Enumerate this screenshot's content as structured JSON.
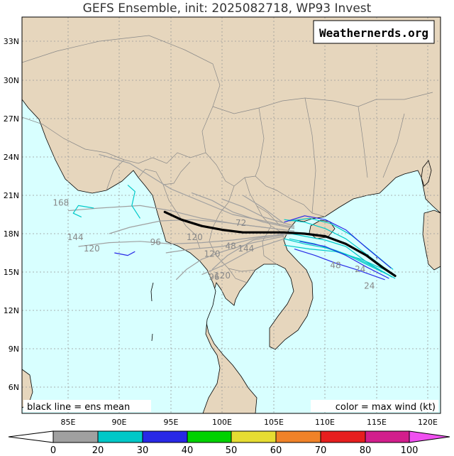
{
  "title": "GEFS Ensemble, init: 2025082718, WP93 Invest",
  "watermark": "Weathernerds.org",
  "lat_labels": [
    "33N",
    "30N",
    "27N",
    "24N",
    "21N",
    "18N",
    "15N",
    "12N",
    "9N",
    "6N"
  ],
  "lon_labels": [
    "85E",
    "90E",
    "95E",
    "100E",
    "105E",
    "110E",
    "115E",
    "120E"
  ],
  "legend_left": "black line = ens mean",
  "legend_right": "color = max wind (kt)",
  "colorbar": {
    "ticks": [
      "0",
      "20",
      "30",
      "40",
      "50",
      "60",
      "70",
      "80",
      "100"
    ],
    "colors": [
      "#a0a0a0",
      "#00c8c8",
      "#2828e6",
      "#00d200",
      "#e6dc32",
      "#f08228",
      "#e61e1e",
      "#d21e8c"
    ],
    "end_colors": {
      "left": "#ffffff",
      "right": "#f050f0"
    }
  },
  "map": {
    "ocean_color": "#d8ffff",
    "land_color": "#e6d6bd",
    "border_color": "#888888",
    "coast_color": "#000000"
  },
  "hour_labels": [
    {
      "text": "168",
      "lon": 84.3,
      "lat": 20.2
    },
    {
      "text": "144",
      "lon": 85.7,
      "lat": 17.5
    },
    {
      "text": "120",
      "lon": 87.3,
      "lat": 16.6
    },
    {
      "text": "96",
      "lon": 93.5,
      "lat": 17.1
    },
    {
      "text": "120",
      "lon": 97.3,
      "lat": 17.5
    },
    {
      "text": "120",
      "lon": 99.0,
      "lat": 16.2
    },
    {
      "text": "96",
      "lon": 99.2,
      "lat": 14.4
    },
    {
      "text": "120",
      "lon": 100.0,
      "lat": 14.5
    },
    {
      "text": "72",
      "lon": 101.8,
      "lat": 18.6
    },
    {
      "text": "48",
      "lon": 100.8,
      "lat": 16.8
    },
    {
      "text": "144",
      "lon": 102.3,
      "lat": 16.6
    },
    {
      "text": "24",
      "lon": 113.4,
      "lat": 15.0
    },
    {
      "text": "48",
      "lon": 111.0,
      "lat": 15.3
    },
    {
      "text": "24",
      "lon": 114.3,
      "lat": 13.7
    }
  ],
  "mean_track": [
    [
      116.8,
      14.7
    ],
    [
      115.5,
      15.4
    ],
    [
      114,
      16.3
    ],
    [
      112,
      17.2
    ],
    [
      110,
      17.8
    ],
    [
      108,
      18.0
    ],
    [
      106,
      18.1
    ],
    [
      104,
      18.1
    ],
    [
      102,
      18.1
    ],
    [
      100,
      18.3
    ],
    [
      98,
      18.6
    ],
    [
      96,
      19.1
    ],
    [
      94.4,
      19.7
    ]
  ],
  "members": [
    {
      "c": "#a0a0a0",
      "p": [
        [
          107,
          18.2
        ],
        [
          104,
          18.5
        ],
        [
          101,
          18.8
        ],
        [
          98,
          19.2
        ],
        [
          95,
          19.8
        ],
        [
          92,
          20.2
        ],
        [
          88,
          20.0
        ],
        [
          85,
          19.8
        ]
      ]
    },
    {
      "c": "#a0a0a0",
      "p": [
        [
          107,
          18.0
        ],
        [
          104,
          17.8
        ],
        [
          101,
          17.5
        ],
        [
          98,
          17.3
        ],
        [
          95,
          17.2
        ],
        [
          92,
          17.4
        ],
        [
          89,
          17.3
        ],
        [
          86,
          17.0
        ]
      ]
    },
    {
      "c": "#a0a0a0",
      "p": [
        [
          107,
          18.5
        ],
        [
          104,
          19.0
        ],
        [
          101,
          19.5
        ],
        [
          98,
          20.5
        ],
        [
          95,
          21.5
        ],
        [
          93,
          22.5
        ],
        [
          91,
          23.5
        ],
        [
          88,
          24.2
        ]
      ]
    },
    {
      "c": "#a0a0a0",
      "p": [
        [
          107,
          18.4
        ],
        [
          104,
          18.9
        ],
        [
          101,
          19.7
        ],
        [
          99,
          20.6
        ],
        [
          97,
          21.2
        ]
      ]
    },
    {
      "c": "#a0a0a0",
      "p": [
        [
          106,
          17.8
        ],
        [
          103,
          17.3
        ],
        [
          100,
          16.6
        ],
        [
          98,
          16.0
        ],
        [
          96.5,
          15.2
        ],
        [
          95.5,
          14.4
        ]
      ]
    },
    {
      "c": "#a0a0a0",
      "p": [
        [
          106,
          17.6
        ],
        [
          103,
          16.8
        ],
        [
          100,
          15.5
        ],
        [
          98,
          14.8
        ]
      ]
    },
    {
      "c": "#a0a0a0",
      "p": [
        [
          107,
          18.6
        ],
        [
          104,
          19.3
        ],
        [
          102,
          20.1
        ],
        [
          100,
          20.7
        ]
      ]
    },
    {
      "c": "#a0a0a0",
      "p": [
        [
          106,
          18.3
        ],
        [
          103,
          18.6
        ],
        [
          100,
          18.9
        ],
        [
          97,
          19.1
        ],
        [
          94,
          19.0
        ],
        [
          91,
          18.5
        ],
        [
          89,
          18.0
        ]
      ]
    },
    {
      "c": "#a0a0a0",
      "p": [
        [
          106,
          18.0
        ],
        [
          103,
          17.6
        ],
        [
          100,
          17.0
        ],
        [
          97,
          16.8
        ],
        [
          94.5,
          16.5
        ]
      ]
    },
    {
      "c": "#a0a0a0",
      "p": [
        [
          106,
          18.8
        ],
        [
          104,
          20.0
        ],
        [
          102,
          21.0
        ]
      ]
    },
    {
      "c": "#a0a0a0",
      "p": [
        [
          106,
          17.9
        ],
        [
          103,
          17.5
        ],
        [
          100.5,
          16.3
        ],
        [
          99,
          15.2
        ]
      ]
    },
    {
      "c": "#00c8c8",
      "p": [
        [
          116.5,
          14.6
        ],
        [
          114,
          15.8
        ],
        [
          112,
          17.0
        ],
        [
          110,
          17.5
        ],
        [
          108,
          17.8
        ],
        [
          106,
          18.1
        ]
      ]
    },
    {
      "c": "#00c8c8",
      "p": [
        [
          116.3,
          15.0
        ],
        [
          114,
          16.4
        ],
        [
          112,
          17.6
        ],
        [
          110,
          18.4
        ],
        [
          108,
          18.9
        ],
        [
          106,
          19.1
        ]
      ]
    },
    {
      "c": "#00c8c8",
      "p": [
        [
          116.1,
          14.8
        ],
        [
          114,
          15.6
        ],
        [
          112,
          16.4
        ],
        [
          110,
          16.9
        ],
        [
          108,
          17.2
        ],
        [
          106,
          17.6
        ]
      ]
    },
    {
      "c": "#00c8c8",
      "p": [
        [
          116.6,
          15.2
        ],
        [
          114.5,
          16.6
        ],
        [
          112.5,
          17.9
        ],
        [
          110.5,
          18.8
        ],
        [
          108.5,
          19.2
        ],
        [
          106.5,
          19.0
        ]
      ]
    },
    {
      "c": "#00c8c8",
      "p": [
        [
          116.0,
          15.1
        ],
        [
          113.5,
          16.0
        ],
        [
          111,
          16.6
        ],
        [
          108.5,
          16.8
        ],
        [
          106,
          17.1
        ]
      ]
    },
    {
      "c": "#00c8c8",
      "p": [
        [
          116.8,
          14.5
        ],
        [
          115,
          15.3
        ],
        [
          113,
          16.1
        ],
        [
          111,
          16.7
        ],
        [
          109,
          17.2
        ],
        [
          106.5,
          17.6
        ]
      ]
    },
    {
      "c": "#00c8c8",
      "p": [
        [
          90.8,
          21.8
        ],
        [
          91.5,
          21.3
        ],
        [
          91.2,
          20.2
        ],
        [
          92.0,
          19.2
        ]
      ]
    },
    {
      "c": "#00c8c8",
      "p": [
        [
          87.5,
          20.0
        ],
        [
          86.0,
          20.2
        ],
        [
          85.5,
          19.6
        ],
        [
          86.3,
          19.3
        ]
      ]
    },
    {
      "c": "#2828e6",
      "p": [
        [
          116.4,
          15.3
        ],
        [
          114,
          16.9
        ],
        [
          112,
          18.3
        ],
        [
          110,
          19.1
        ],
        [
          108,
          19.4
        ],
        [
          106,
          18.9
        ]
      ]
    },
    {
      "c": "#2828e6",
      "p": [
        [
          115.8,
          14.4
        ],
        [
          113,
          15.2
        ],
        [
          111,
          15.7
        ],
        [
          109,
          16.3
        ],
        [
          107,
          16.8
        ]
      ]
    },
    {
      "c": "#2828e6",
      "p": [
        [
          116.2,
          14.5
        ],
        [
          114,
          15.4
        ],
        [
          112,
          16.3
        ],
        [
          110,
          17.0
        ],
        [
          107.5,
          17.4
        ]
      ]
    },
    {
      "c": "#2828e6",
      "p": [
        [
          91.5,
          16.6
        ],
        [
          90.8,
          16.3
        ],
        [
          89.5,
          16.5
        ]
      ]
    }
  ]
}
